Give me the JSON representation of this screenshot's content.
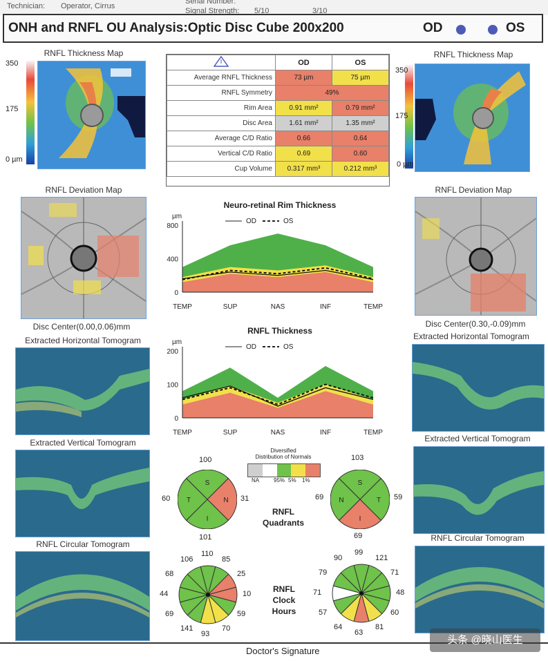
{
  "header": {
    "technician_label": "Technician:",
    "technician_value": "Operator, Cirrus",
    "serial_label": "Serial Number:",
    "signal_label": "Signal Strength:",
    "signal_od": "5/10",
    "signal_os": "3/10",
    "title": "ONH and RNFL OU Analysis:Optic Disc Cube 200x200",
    "od": "OD",
    "os": "OS"
  },
  "left": {
    "thickness_map_title": "RNFL Thickness Map",
    "scale_350": "350",
    "scale_175": "175",
    "scale_0": "0 µm",
    "deviation_title": "RNFL Deviation Map",
    "disc_center": "Disc Center(0.00,0.06)mm",
    "horizontal_title": "Extracted Horizontal Tomogram",
    "vertical_title": "Extracted Vertical Tomogram",
    "circular_title": "RNFL Circular Tomogram"
  },
  "right": {
    "thickness_map_title": "RNFL Thickness Map",
    "scale_350": "350",
    "scale_175": "175",
    "scale_0": "0 µm",
    "deviation_title": "RNFL Deviation Map",
    "disc_center": "Disc Center(0.30,-0.09)mm",
    "horizontal_title": "Extracted Horizontal Tomogram",
    "vertical_title": "Extracted Vertical Tomogram",
    "circular_title": "RNFL Circular Tomogram"
  },
  "table": {
    "col_od": "OD",
    "col_os": "OS",
    "rows": [
      {
        "label": "Average RNFL Thickness",
        "od": "73 µm",
        "os": "75 µm",
        "od_color": "#e8806a",
        "os_color": "#f2e04a"
      },
      {
        "label": "RNFL Symmetry",
        "span": "49%",
        "span_color": "#e8806a"
      },
      {
        "label": "Rim Area",
        "od": "0.91 mm²",
        "os": "0.79 mm²",
        "od_color": "#f2e04a",
        "os_color": "#e8806a"
      },
      {
        "label": "Disc Area",
        "od": "1.61 mm²",
        "os": "1.35 mm²",
        "od_color": "#cfcfcf",
        "os_color": "#cfcfcf"
      },
      {
        "label": "Average C/D Ratio",
        "od": "0.66",
        "os": "0.64",
        "od_color": "#e8806a",
        "os_color": "#e8806a"
      },
      {
        "label": "Vertical C/D Ratio",
        "od": "0.69",
        "os": "0.60",
        "od_color": "#f2e04a",
        "os_color": "#e8806a"
      },
      {
        "label": "Cup Volume",
        "od": "0.317 mm³",
        "os": "0.212 mm³",
        "od_color": "#f2e04a",
        "os_color": "#f2e04a"
      }
    ]
  },
  "charts": {
    "rim_title": "Neuro-retinal Rim Thickness",
    "rnfl_title": "RNFL Thickness",
    "unit": "µm",
    "legend_od": "OD",
    "legend_os": "OS",
    "x_labels": [
      "TEMP",
      "SUP",
      "NAS",
      "INF",
      "TEMP"
    ],
    "rim_y_ticks": [
      "800",
      "400",
      "0"
    ],
    "rnfl_y_ticks": [
      "200",
      "100",
      "0"
    ]
  },
  "chart_data": [
    {
      "type": "line",
      "title": "Neuro-retinal Rim Thickness",
      "ylabel": "µm",
      "x": [
        "TEMP",
        "SUP",
        "NAS",
        "INF",
        "TEMP"
      ],
      "ylim": [
        0,
        800
      ],
      "series": [
        {
          "name": "OD",
          "values": [
            160,
            240,
            200,
            260,
            150
          ]
        },
        {
          "name": "OS",
          "values": [
            150,
            260,
            220,
            290,
            160
          ]
        }
      ]
    },
    {
      "type": "line",
      "title": "RNFL Thickness",
      "ylabel": "µm",
      "x": [
        "TEMP",
        "SUP",
        "NAS",
        "INF",
        "TEMP"
      ],
      "ylim": [
        0,
        200
      ],
      "series": [
        {
          "name": "OD",
          "values": [
            60,
            95,
            35,
            90,
            55
          ]
        },
        {
          "name": "OS",
          "values": [
            55,
            90,
            40,
            100,
            60
          ]
        }
      ]
    }
  ],
  "legend": {
    "title_line1": "Diversified",
    "title_line2": "Distribution of Normals",
    "na": "NA",
    "p95": "95%",
    "p5": "5%",
    "p1": "1%"
  },
  "quadrants": {
    "title_line1": "RNFL",
    "title_line2": "Quadrants",
    "od": {
      "top": "100",
      "left": "60",
      "right": "31",
      "bottom": "101",
      "s": "S",
      "t": "T",
      "n": "N",
      "i": "I"
    },
    "os": {
      "top": "103",
      "left": "69",
      "right": "59",
      "bottom": "69",
      "s": "S",
      "t": "T",
      "n": "N",
      "i": "I"
    }
  },
  "clock": {
    "title_line1": "RNFL",
    "title_line2": "Clock",
    "title_line3": "Hours",
    "od": [
      "110",
      "85",
      "25",
      "10",
      "59",
      "70",
      "93",
      "141",
      "69",
      "44",
      "68",
      "106"
    ],
    "os": [
      "99",
      "121",
      "71",
      "48",
      "60",
      "81",
      "63",
      "64",
      "57",
      "71",
      "79",
      "90"
    ]
  },
  "footer": {
    "signature": "Doctor's Signature",
    "watermark": "头条 @晓山医生"
  }
}
